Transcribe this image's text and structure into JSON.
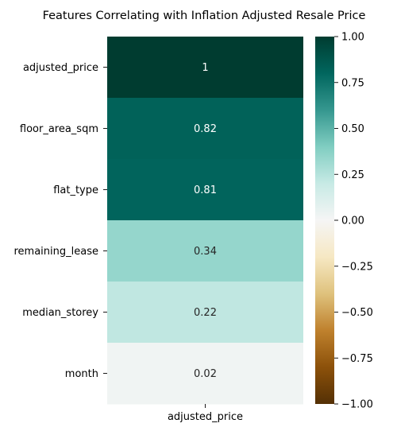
{
  "chart_data": {
    "type": "heatmap",
    "title": "Features Correlating with Inflation Adjusted Resale Price",
    "xlabel": "",
    "ylabel": "",
    "x_categories": [
      "adjusted_price"
    ],
    "y_categories": [
      "adjusted_price",
      "floor_area_sqm",
      "flat_type",
      "remaining_lease",
      "median_storey",
      "month"
    ],
    "values": [
      1.0,
      0.82,
      0.81,
      0.34,
      0.22,
      0.02
    ],
    "cell_labels": [
      "1",
      "0.82",
      "0.81",
      "0.34",
      "0.22",
      "0.02"
    ],
    "colormap": "BrBG",
    "vmin": -1.0,
    "vmax": 1.0,
    "colorbar_ticks": [
      1.0,
      0.75,
      0.5,
      0.25,
      0.0,
      -0.25,
      -0.5,
      -0.75,
      -1.0
    ],
    "colorbar_tick_labels": [
      "1.00",
      "0.75",
      "0.50",
      "0.25",
      "0.00",
      "−0.25",
      "−0.50",
      "−0.75",
      "−1.00"
    ],
    "colors": {
      "dark_text": "#262626",
      "light_text": "#ffffff"
    }
  }
}
